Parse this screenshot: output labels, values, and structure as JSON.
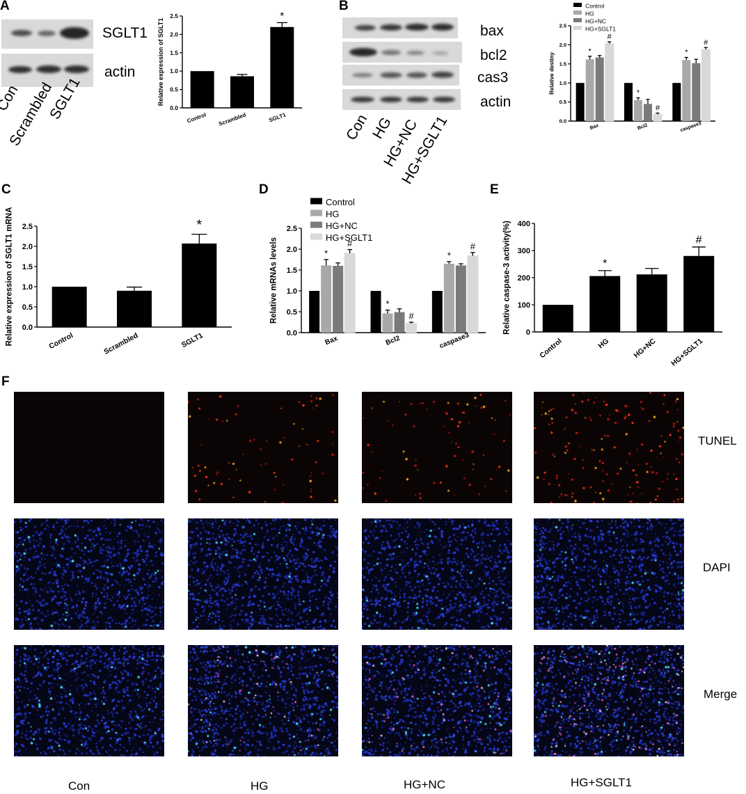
{
  "panelA": {
    "letter": "A",
    "blot_labels": [
      "SGLT1",
      "actin"
    ],
    "lanes": [
      "Con",
      "Scrambled",
      "SGLT1"
    ]
  },
  "panelB": {
    "letter": "B",
    "blot_labels": [
      "bax",
      "bcl2",
      "cas3",
      "actin"
    ],
    "lanes": [
      "Con",
      "HG",
      "HG+NC",
      "HG+SGLT1"
    ]
  },
  "panelC": {
    "letter": "C"
  },
  "panelD": {
    "letter": "D"
  },
  "panelE": {
    "letter": "E"
  },
  "panelF": {
    "letter": "F",
    "rows": [
      "TUNEL",
      "DAPI",
      "Merge"
    ],
    "columns": [
      "Con",
      "HG",
      "HG+NC",
      "HG+SGLT1"
    ]
  },
  "colors": {
    "Control": "#000000",
    "HG": "#a8a8a8",
    "HG+NC": "#7a7a7a",
    "HG+SGLT1": "#d9d9d9",
    "tunel": "#ff3a1a",
    "dapi": "#2a4cff"
  },
  "chart_data": [
    {
      "id": "A_bar",
      "type": "bar",
      "categories": [
        "Control",
        "Scrambled",
        "SGLT1"
      ],
      "values": [
        1.0,
        0.86,
        2.2
      ],
      "errors": [
        0,
        0.05,
        0.12
      ],
      "annotations": [
        "",
        "",
        "*"
      ],
      "ylabel": "Relative expression of SGLT1",
      "ylim": [
        0,
        2.5
      ],
      "yticks": [
        "0.0",
        "0.5",
        "1.0",
        "1.5",
        "2.0",
        "2.5"
      ],
      "grid": false
    },
    {
      "id": "B_bar",
      "type": "bar",
      "categories": [
        "Bax",
        "Bcl2",
        "caspase3"
      ],
      "series": [
        {
          "name": "Control",
          "values": [
            1.0,
            1.0,
            1.0
          ],
          "errors": [
            0,
            0,
            0
          ],
          "annotations": [
            "",
            "",
            ""
          ]
        },
        {
          "name": "HG",
          "values": [
            1.62,
            0.55,
            1.6
          ],
          "errors": [
            0.08,
            0.06,
            0.07
          ],
          "annotations": [
            "*",
            "*",
            "*"
          ]
        },
        {
          "name": "HG+NC",
          "values": [
            1.67,
            0.45,
            1.52
          ],
          "errors": [
            0.05,
            0.12,
            0.1
          ],
          "annotations": [
            "",
            "",
            ""
          ]
        },
        {
          "name": "HG+SGLT1",
          "values": [
            2.03,
            0.18,
            1.88
          ],
          "errors": [
            0.05,
            0.03,
            0.05
          ],
          "annotations": [
            "#",
            "#",
            "#"
          ]
        }
      ],
      "ylabel": "Relative destiny",
      "ylim": [
        0,
        2.5
      ],
      "yticks": [
        "0.0",
        "0.5",
        "1.0",
        "1.5",
        "2.0",
        "2.5"
      ],
      "legend": "top-left",
      "grid": false
    },
    {
      "id": "C_bar",
      "type": "bar",
      "categories": [
        "Control",
        "Scrambled",
        "SGLT1"
      ],
      "values": [
        1.0,
        0.9,
        2.07
      ],
      "errors": [
        0,
        0.09,
        0.23
      ],
      "annotations": [
        "",
        "",
        "*"
      ],
      "ylabel": "Relative expression of SGLT1 mRNA",
      "ylim": [
        0,
        2.5
      ],
      "yticks": [
        "0.0",
        "0.5",
        "1.0",
        "1.5",
        "2.0",
        "2.5"
      ],
      "grid": false
    },
    {
      "id": "D_bar",
      "type": "bar",
      "categories": [
        "Bax",
        "Bcl2",
        "caspase3"
      ],
      "series": [
        {
          "name": "Control",
          "values": [
            1.0,
            1.0,
            1.0
          ],
          "errors": [
            0,
            0,
            0
          ],
          "annotations": [
            "",
            "",
            ""
          ]
        },
        {
          "name": "HG",
          "values": [
            1.61,
            0.46,
            1.65
          ],
          "errors": [
            0.14,
            0.08,
            0.05
          ],
          "annotations": [
            "*",
            "*",
            "*"
          ]
        },
        {
          "name": "HG+NC",
          "values": [
            1.6,
            0.49,
            1.61
          ],
          "errors": [
            0.07,
            0.08,
            0.04
          ],
          "annotations": [
            "",
            "",
            ""
          ]
        },
        {
          "name": "HG+SGLT1",
          "values": [
            1.9,
            0.22,
            1.84
          ],
          "errors": [
            0.09,
            0.03,
            0.08
          ],
          "annotations": [
            "#",
            "#",
            "#"
          ]
        }
      ],
      "ylabel": "Relative mRNAs levels",
      "ylim": [
        0,
        2.5
      ],
      "yticks": [
        "0.0",
        "0.5",
        "1.0",
        "1.5",
        "2.0",
        "2.5"
      ],
      "legend": "top-left",
      "grid": false
    },
    {
      "id": "E_bar",
      "type": "bar",
      "categories": [
        "Control",
        "HG",
        "HG+NC",
        "HG+SGLT1"
      ],
      "values": [
        100,
        206,
        212,
        280
      ],
      "errors": [
        0,
        20,
        22,
        33
      ],
      "annotations": [
        "",
        "*",
        "",
        "#"
      ],
      "ylabel": "Relative caspase-3 activity(%)",
      "ylim": [
        0,
        400
      ],
      "yticks": [
        "0",
        "100",
        "200",
        "300",
        "400"
      ],
      "grid": false
    }
  ]
}
